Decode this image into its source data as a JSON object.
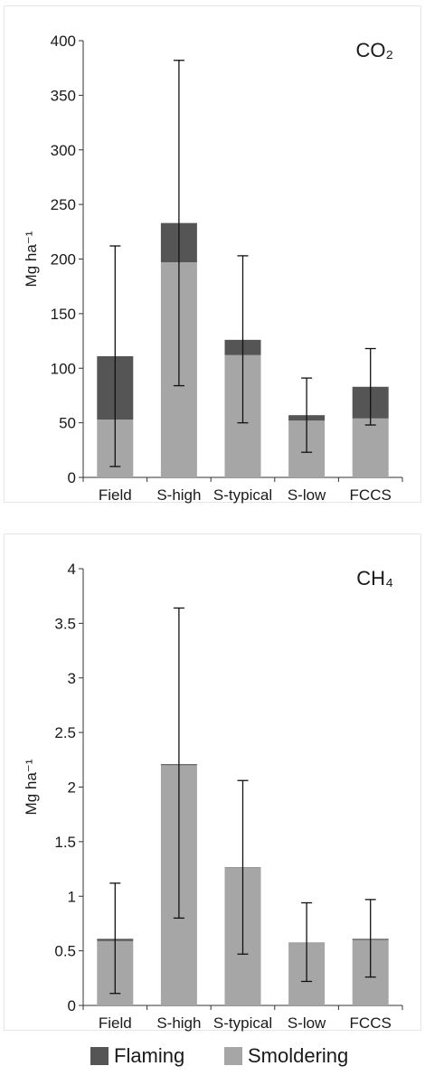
{
  "chart_data": [
    {
      "type": "bar",
      "stacked": true,
      "title": "CO₂",
      "ylabel": "Mg ha⁻¹",
      "ylim": [
        0,
        400
      ],
      "yticks": [
        "0",
        "50",
        "100",
        "150",
        "200",
        "250",
        "300",
        "350",
        "400"
      ],
      "categories": [
        "Field",
        "S-high",
        "S-typical",
        "S-low",
        "FCCS"
      ],
      "series": [
        {
          "name": "Smoldering",
          "color": "#a6a6a6",
          "values": [
            53,
            197,
            112,
            52,
            54
          ]
        },
        {
          "name": "Flaming",
          "color": "#555555",
          "values": [
            58,
            36,
            14,
            5,
            29
          ]
        }
      ],
      "error_bars": [
        {
          "low": 10,
          "high": 212
        },
        {
          "low": 84,
          "high": 382
        },
        {
          "low": 50,
          "high": 203
        },
        {
          "low": 23,
          "high": 91
        },
        {
          "low": 48,
          "high": 118
        }
      ],
      "grid": false
    },
    {
      "type": "bar",
      "stacked": true,
      "title": "CH₄",
      "ylabel": "Mg ha⁻¹",
      "ylim": [
        0,
        4
      ],
      "yticks": [
        "0",
        "0.5",
        "1",
        "1.5",
        "2",
        "2.5",
        "3",
        "3.5",
        "4"
      ],
      "categories": [
        "Field",
        "S-high",
        "S-typical",
        "S-low",
        "FCCS"
      ],
      "series": [
        {
          "name": "Smoldering",
          "color": "#a6a6a6",
          "values": [
            0.59,
            2.2,
            1.26,
            0.57,
            0.6
          ]
        },
        {
          "name": "Flaming",
          "color": "#555555",
          "values": [
            0.02,
            0.01,
            0.005,
            0.005,
            0.01
          ]
        }
      ],
      "error_bars": [
        {
          "low": 0.11,
          "high": 1.12
        },
        {
          "low": 0.8,
          "high": 3.64
        },
        {
          "low": 0.47,
          "high": 2.06
        },
        {
          "low": 0.22,
          "high": 0.94
        },
        {
          "low": 0.26,
          "high": 0.97
        }
      ],
      "grid": false
    }
  ],
  "legend": {
    "items": [
      {
        "label": "Flaming",
        "color": "#555555"
      },
      {
        "label": "Smoldering",
        "color": "#a6a6a6"
      }
    ]
  }
}
